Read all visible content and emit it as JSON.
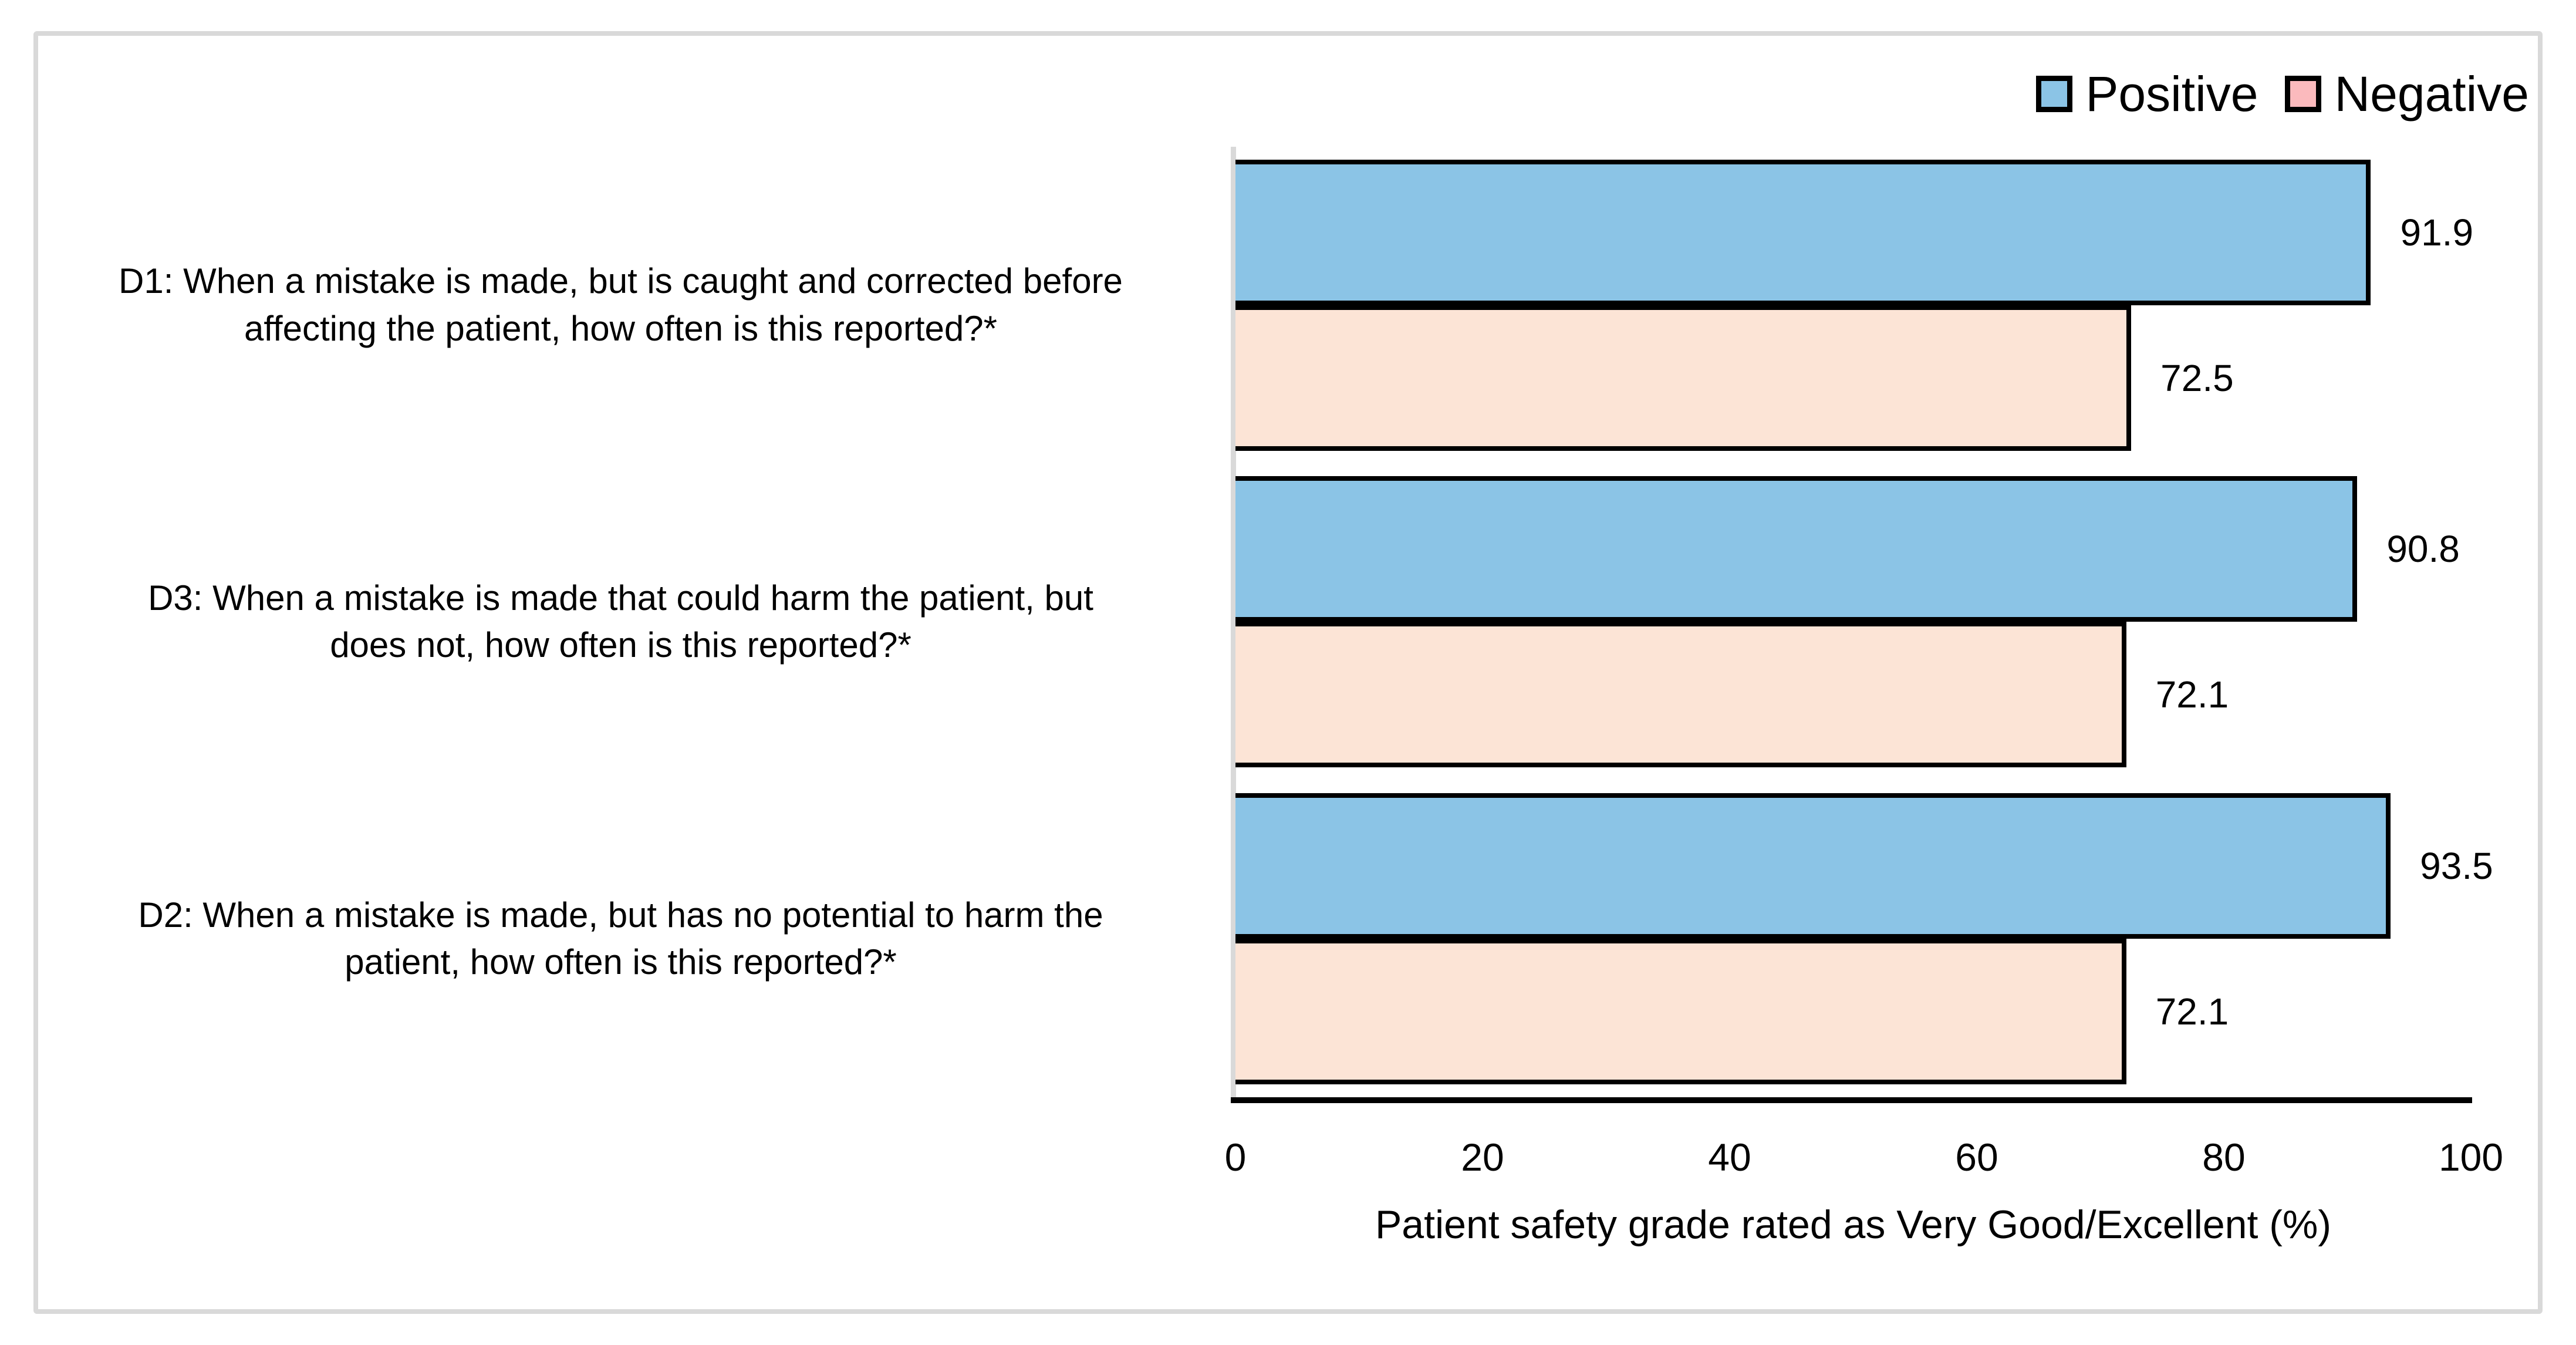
{
  "legend": {
    "items": [
      {
        "label": "Positive",
        "swatch_color": "#8bc4e6"
      },
      {
        "label": "Negative",
        "swatch_color": "#fbbabd"
      }
    ]
  },
  "chart_data": {
    "type": "bar",
    "orientation": "horizontal",
    "title": "",
    "xlabel": "Patient safety grade rated as Very Good/Excellent (%)",
    "xlim": [
      0,
      100
    ],
    "x_ticks": [
      0,
      20,
      40,
      60,
      80,
      100
    ],
    "grid": false,
    "legend_position": "top-right",
    "categories": [
      "D1: When a mistake is made, but is caught and corrected before\naffecting the patient, how often is this reported?*",
      "D3: When a mistake is made that could harm the patient, but\ndoes not, how often is this reported?*",
      "D2: When a mistake is made, but has no potential to harm the\npatient, how often is this reported?*"
    ],
    "series": [
      {
        "name": "Positive",
        "color": "#8bc4e6",
        "values": [
          91.9,
          90.8,
          93.5
        ]
      },
      {
        "name": "Negative",
        "color": "#fce4d6",
        "values": [
          72.5,
          72.1,
          72.1
        ]
      }
    ],
    "bar_border_color": "#000000",
    "axis_line_color": "#000000",
    "category_axis_line_color": "#d9d9d9"
  }
}
